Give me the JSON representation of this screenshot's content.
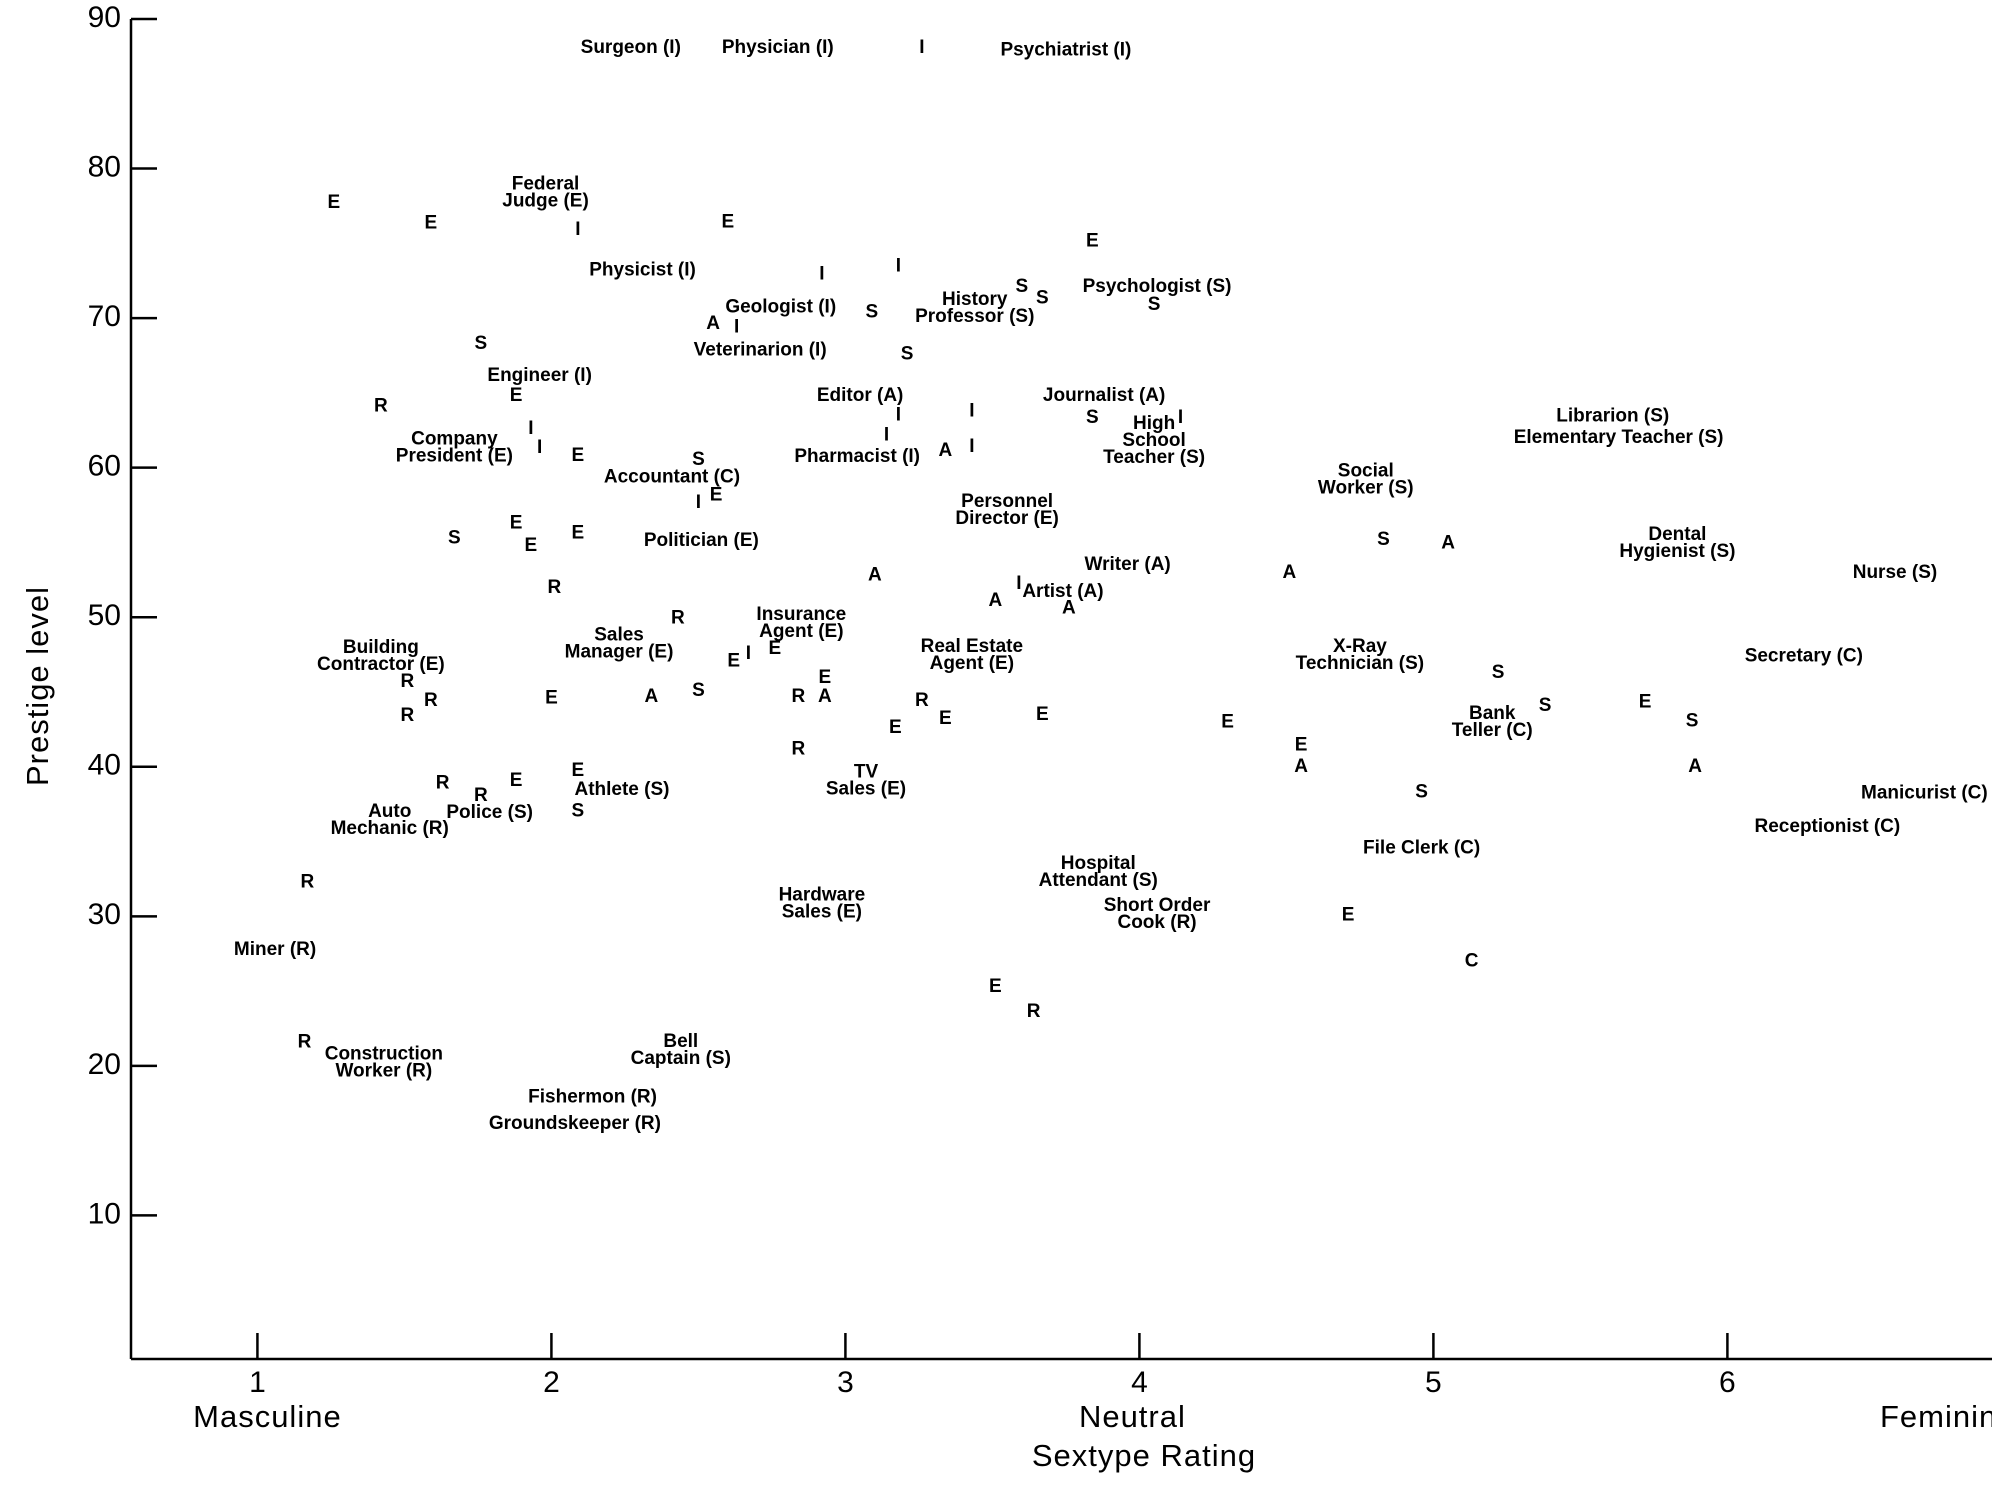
{
  "chart_data": {
    "type": "scatter",
    "x_label": "Sextype Rating",
    "y_label": "Prestige level",
    "x_anchor_labels": [
      "Masculine",
      "Neutral",
      "Feminine"
    ],
    "xlim": [
      0.57,
      6.9
    ],
    "ylim": [
      0.4,
      90
    ],
    "xticks": [
      1,
      2,
      3,
      4,
      5,
      6
    ],
    "yticks": [
      10,
      20,
      30,
      40,
      50,
      60,
      70,
      80,
      90
    ],
    "color": "#000000",
    "points": [
      {
        "x": 2.27,
        "y": 88.05,
        "label": [
          "Surgeon (I)"
        ]
      },
      {
        "x": 2.77,
        "y": 88.05,
        "label": [
          "Physician (I)"
        ]
      },
      {
        "x": 3.26,
        "y": 88.05,
        "code": "I"
      },
      {
        "x": 3.75,
        "y": 87.88,
        "label": [
          "Psychiatrist (I)"
        ]
      },
      {
        "x": 1.98,
        "y": 78.37,
        "label": [
          "Federal",
          "Judge (E)"
        ]
      },
      {
        "x": 1.26,
        "y": 77.69,
        "code": "E"
      },
      {
        "x": 1.59,
        "y": 76.33,
        "code": "E"
      },
      {
        "x": 2.09,
        "y": 75.9,
        "code": "I"
      },
      {
        "x": 2.6,
        "y": 76.41,
        "code": "E"
      },
      {
        "x": 3.84,
        "y": 75.14,
        "code": "E"
      },
      {
        "x": 2.31,
        "y": 73.18,
        "label": [
          "Physicist (I)"
        ]
      },
      {
        "x": 2.92,
        "y": 72.93,
        "code": "I"
      },
      {
        "x": 3.18,
        "y": 73.44,
        "code": "I"
      },
      {
        "x": 3.6,
        "y": 72.08,
        "code": "S"
      },
      {
        "x": 3.67,
        "y": 71.32,
        "code": "S"
      },
      {
        "x": 4.06,
        "y": 72.08,
        "label": [
          "Psychologist (S)"
        ]
      },
      {
        "x": 4.05,
        "y": 70.89,
        "code": "S"
      },
      {
        "x": 2.78,
        "y": 70.72,
        "label": [
          "Geologist (I)"
        ]
      },
      {
        "x": 3.09,
        "y": 70.38,
        "code": "S"
      },
      {
        "x": 2.55,
        "y": 69.62,
        "code": "A"
      },
      {
        "x": 2.63,
        "y": 69.36,
        "code": "I"
      },
      {
        "x": 3.44,
        "y": 70.64,
        "label": [
          "History",
          "Professor (S)"
        ]
      },
      {
        "x": 1.76,
        "y": 68.26,
        "code": "S"
      },
      {
        "x": 2.71,
        "y": 67.83,
        "label": [
          "Veterinarion (I)"
        ]
      },
      {
        "x": 3.21,
        "y": 67.58,
        "code": "S"
      },
      {
        "x": 1.96,
        "y": 66.14,
        "label": [
          "Engineer (I)"
        ]
      },
      {
        "x": 1.88,
        "y": 64.78,
        "code": "E"
      },
      {
        "x": 1.42,
        "y": 64.1,
        "code": "R"
      },
      {
        "x": 3.05,
        "y": 64.78,
        "label": [
          "Editor (A)"
        ]
      },
      {
        "x": 3.88,
        "y": 64.78,
        "label": [
          "Journalist (A)"
        ]
      },
      {
        "x": 3.18,
        "y": 63.5,
        "code": "I"
      },
      {
        "x": 3.43,
        "y": 63.76,
        "code": "I"
      },
      {
        "x": 3.84,
        "y": 63.33,
        "code": "S"
      },
      {
        "x": 5.61,
        "y": 63.42,
        "label": [
          "Librarion (S)"
        ]
      },
      {
        "x": 4.14,
        "y": 63.33,
        "code": "I"
      },
      {
        "x": 4.05,
        "y": 61.8,
        "label": [
          "High",
          "School",
          "Teacher (S)"
        ]
      },
      {
        "x": 1.93,
        "y": 62.57,
        "code": "I"
      },
      {
        "x": 3.14,
        "y": 62.14,
        "code": "I"
      },
      {
        "x": 1.67,
        "y": 61.3,
        "label": [
          "Company",
          "President (E)"
        ]
      },
      {
        "x": 1.96,
        "y": 61.3,
        "code": "I"
      },
      {
        "x": 2.09,
        "y": 60.79,
        "code": "E"
      },
      {
        "x": 3.04,
        "y": 60.7,
        "label": [
          "Pharmacist (I)"
        ]
      },
      {
        "x": 3.34,
        "y": 61.13,
        "code": "A"
      },
      {
        "x": 3.43,
        "y": 61.38,
        "code": "I"
      },
      {
        "x": 5.63,
        "y": 61.97,
        "label": [
          "Elementary Teacher (S)"
        ]
      },
      {
        "x": 2.5,
        "y": 60.53,
        "code": "S"
      },
      {
        "x": 2.41,
        "y": 59.34,
        "label": [
          "Accountant (C)"
        ]
      },
      {
        "x": 2.56,
        "y": 58.15,
        "code": "E"
      },
      {
        "x": 2.5,
        "y": 57.64,
        "code": "I"
      },
      {
        "x": 4.77,
        "y": 59.17,
        "label": [
          "Social",
          "Worker (S)"
        ]
      },
      {
        "x": 3.55,
        "y": 57.13,
        "label": [
          "Personnel",
          "Director (E)"
        ]
      },
      {
        "x": 1.67,
        "y": 55.27,
        "code": "S"
      },
      {
        "x": 1.88,
        "y": 56.28,
        "code": "E"
      },
      {
        "x": 1.93,
        "y": 54.76,
        "code": "E"
      },
      {
        "x": 2.09,
        "y": 55.61,
        "code": "E"
      },
      {
        "x": 2.51,
        "y": 55.1,
        "label": [
          "Politician (E)"
        ]
      },
      {
        "x": 4.83,
        "y": 55.18,
        "code": "S"
      },
      {
        "x": 5.05,
        "y": 54.93,
        "code": "A"
      },
      {
        "x": 5.83,
        "y": 54.93,
        "label": [
          "Dental",
          "Hygienist (S)"
        ]
      },
      {
        "x": 6.57,
        "y": 52.97,
        "label": [
          "Nurse (S)"
        ]
      },
      {
        "x": 3.96,
        "y": 53.48,
        "label": [
          "Writer (A)"
        ]
      },
      {
        "x": 4.51,
        "y": 52.97,
        "code": "A"
      },
      {
        "x": 3.1,
        "y": 52.8,
        "code": "A"
      },
      {
        "x": 2.01,
        "y": 51.95,
        "code": "R"
      },
      {
        "x": 3.59,
        "y": 52.21,
        "code": "I"
      },
      {
        "x": 3.74,
        "y": 51.7,
        "label": [
          "Artist (A)"
        ]
      },
      {
        "x": 3.51,
        "y": 51.1,
        "code": "A"
      },
      {
        "x": 3.76,
        "y": 50.59,
        "code": "A"
      },
      {
        "x": 2.43,
        "y": 49.92,
        "code": "R"
      },
      {
        "x": 2.85,
        "y": 49.58,
        "label": [
          "Insurance",
          "Agent (E)"
        ]
      },
      {
        "x": 2.23,
        "y": 48.22,
        "label": [
          "Sales",
          "Manager (E)"
        ]
      },
      {
        "x": 1.42,
        "y": 47.37,
        "label": [
          "Building",
          "Contractor (E)"
        ]
      },
      {
        "x": 1.51,
        "y": 45.67,
        "code": "R"
      },
      {
        "x": 2.76,
        "y": 47.88,
        "code": "E"
      },
      {
        "x": 2.62,
        "y": 47.03,
        "code": "E"
      },
      {
        "x": 2.67,
        "y": 47.54,
        "code": "I"
      },
      {
        "x": 3.43,
        "y": 47.45,
        "label": [
          "Real Estate",
          "Agent (E)"
        ]
      },
      {
        "x": 4.75,
        "y": 47.45,
        "label": [
          "X-Ray",
          "Technician (S)"
        ]
      },
      {
        "x": 6.26,
        "y": 47.37,
        "label": [
          "Secretary (C)"
        ]
      },
      {
        "x": 5.22,
        "y": 46.26,
        "code": "S"
      },
      {
        "x": 2.93,
        "y": 45.92,
        "code": "E"
      },
      {
        "x": 1.59,
        "y": 44.39,
        "code": "R"
      },
      {
        "x": 2.0,
        "y": 44.56,
        "code": "E"
      },
      {
        "x": 2.34,
        "y": 44.65,
        "code": "A"
      },
      {
        "x": 2.5,
        "y": 45.07,
        "code": "S"
      },
      {
        "x": 2.84,
        "y": 44.65,
        "code": "R"
      },
      {
        "x": 2.93,
        "y": 44.65,
        "code": "A"
      },
      {
        "x": 3.26,
        "y": 44.39,
        "code": "R"
      },
      {
        "x": 3.67,
        "y": 43.46,
        "code": "E"
      },
      {
        "x": 3.34,
        "y": 43.21,
        "code": "E"
      },
      {
        "x": 3.17,
        "y": 42.61,
        "code": "E"
      },
      {
        "x": 4.3,
        "y": 42.95,
        "code": "E"
      },
      {
        "x": 1.51,
        "y": 43.38,
        "code": "R"
      },
      {
        "x": 5.2,
        "y": 42.95,
        "label": [
          "Bank",
          "Teller (C)"
        ]
      },
      {
        "x": 5.38,
        "y": 44.06,
        "code": "S"
      },
      {
        "x": 5.72,
        "y": 44.31,
        "code": "E"
      },
      {
        "x": 5.88,
        "y": 43.04,
        "code": "S"
      },
      {
        "x": 4.55,
        "y": 41.42,
        "code": "E"
      },
      {
        "x": 4.55,
        "y": 39.98,
        "code": "A"
      },
      {
        "x": 5.89,
        "y": 39.98,
        "code": "A"
      },
      {
        "x": 2.84,
        "y": 41.17,
        "code": "R"
      },
      {
        "x": 2.09,
        "y": 39.72,
        "code": "E"
      },
      {
        "x": 3.07,
        "y": 39.04,
        "label": [
          "TV",
          "Sales (E)"
        ]
      },
      {
        "x": 1.63,
        "y": 38.87,
        "code": "R"
      },
      {
        "x": 1.88,
        "y": 39.04,
        "code": "E"
      },
      {
        "x": 1.76,
        "y": 38.03,
        "code": "R"
      },
      {
        "x": 2.24,
        "y": 38.45,
        "label": [
          "Athlete (S)"
        ]
      },
      {
        "x": 4.96,
        "y": 38.28,
        "code": "S"
      },
      {
        "x": 6.67,
        "y": 38.2,
        "label": [
          "Manicurist (C)"
        ]
      },
      {
        "x": 1.45,
        "y": 36.41,
        "label": [
          "Auto",
          "Mechanic (R)"
        ]
      },
      {
        "x": 1.79,
        "y": 36.92,
        "label": [
          "Police (S)"
        ]
      },
      {
        "x": 2.09,
        "y": 37.01,
        "code": "S"
      },
      {
        "x": 6.34,
        "y": 35.99,
        "label": [
          "Receptionist (C)"
        ]
      },
      {
        "x": 4.96,
        "y": 34.54,
        "label": [
          "File Clerk (C)"
        ]
      },
      {
        "x": 3.86,
        "y": 32.93,
        "label": [
          "Hospital",
          "Attendant (S)"
        ]
      },
      {
        "x": 1.17,
        "y": 32.25,
        "code": "R"
      },
      {
        "x": 2.92,
        "y": 30.81,
        "label": [
          "Hardware",
          "Sales (E)"
        ]
      },
      {
        "x": 4.06,
        "y": 30.13,
        "label": [
          "Short Order",
          "Cook (R)"
        ]
      },
      {
        "x": 4.71,
        "y": 30.04,
        "code": "E"
      },
      {
        "x": 1.06,
        "y": 27.75,
        "label": [
          "Miner (R)"
        ]
      },
      {
        "x": 5.13,
        "y": 26.98,
        "code": "C"
      },
      {
        "x": 3.51,
        "y": 25.29,
        "code": "E"
      },
      {
        "x": 3.64,
        "y": 23.59,
        "code": "R"
      },
      {
        "x": 1.16,
        "y": 21.55,
        "code": "R"
      },
      {
        "x": 1.43,
        "y": 20.19,
        "label": [
          "Construction",
          "Worker (R)"
        ]
      },
      {
        "x": 2.44,
        "y": 21.04,
        "label": [
          "Bell",
          "Captain (S)"
        ]
      },
      {
        "x": 2.14,
        "y": 17.9,
        "label": [
          "Fishermon (R)"
        ]
      },
      {
        "x": 2.08,
        "y": 16.11,
        "label": [
          "Groundskeeper (R)"
        ]
      }
    ]
  }
}
